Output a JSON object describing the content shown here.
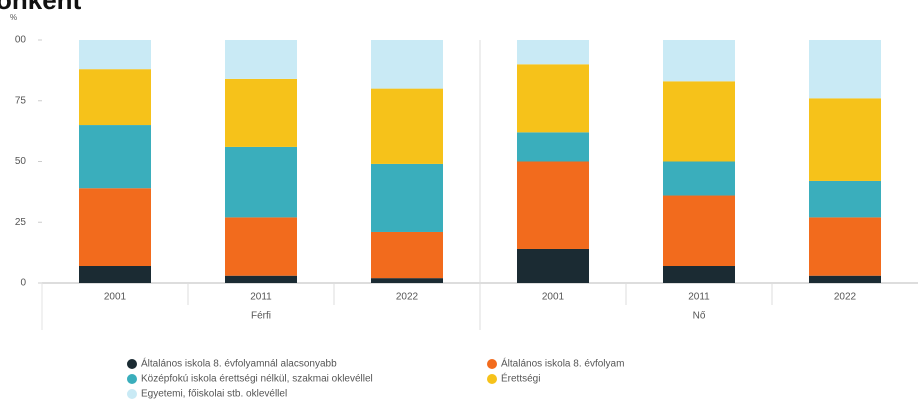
{
  "chart_data": {
    "type": "stacked_bar",
    "title": "onként",
    "y_label": "%",
    "categories": [
      "2001",
      "2011",
      "2022",
      "2001",
      "2011",
      "2022"
    ],
    "groups": [
      "Férfi",
      "Nő"
    ],
    "ylim": [
      0,
      100
    ],
    "yticks": [
      0,
      25,
      50,
      75,
      {
        "value": 100,
        "label": "00"
      }
    ],
    "grid": false,
    "series": [
      {
        "name": "Általános iskola 8. évfolyamnál alacsonyabb",
        "color": "#1b2b33",
        "values": [
          7,
          3,
          2,
          14,
          7,
          3
        ]
      },
      {
        "name": "Általános iskola 8. évfolyam",
        "color": "#f26b1d",
        "values": [
          32,
          24,
          19,
          36,
          29,
          24
        ]
      },
      {
        "name": "Középfokú iskola érettségi nélkül, szakmai oklevéllel",
        "color": "#3aaebc",
        "values": [
          26,
          29,
          28,
          12,
          14,
          15
        ]
      },
      {
        "name": "Érettségi",
        "color": "#f6c21a",
        "values": [
          23,
          28,
          31,
          28,
          33,
          34
        ]
      },
      {
        "name": "Egyetemi, főiskolai stb. oklevéllel",
        "color": "#c9eaf5",
        "values": [
          12,
          16,
          20,
          10,
          17,
          24
        ]
      }
    ]
  }
}
